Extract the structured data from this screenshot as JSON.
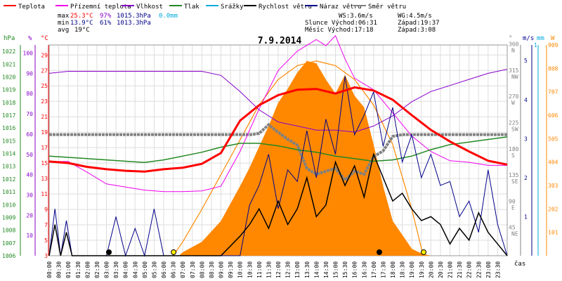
{
  "chart_data": {
    "type": "line",
    "title": "7.9.2014",
    "xlabel": "čas",
    "x_ticks": [
      "00:00",
      "00:30",
      "01:00",
      "01:30",
      "02:00",
      "02:30",
      "03:00",
      "03:30",
      "04:00",
      "04:30",
      "05:00",
      "05:30",
      "06:00",
      "06:30",
      "07:00",
      "07:30",
      "08:00",
      "08:30",
      "09:00",
      "09:30",
      "10:00",
      "10:30",
      "11:00",
      "11:30",
      "12:00",
      "12:30",
      "13:00",
      "13:30",
      "14:00",
      "14:30",
      "15:00",
      "15:30",
      "16:00",
      "16:30",
      "17:00",
      "17:30",
      "18:00",
      "18:30",
      "19:00",
      "19:30",
      "20:00",
      "20:30",
      "21:00",
      "21:30",
      "22:00",
      "22:30",
      "23:00",
      "23:30"
    ],
    "legend": [
      {
        "name": "Teplota",
        "color": "#ff0000"
      },
      {
        "name": "Přízemní teplota",
        "color": "#ee00ee"
      },
      {
        "name": "Vlhkost",
        "color": "#8800cc"
      },
      {
        "name": "Tlak",
        "color": "#228822"
      },
      {
        "name": "Srážky",
        "color": "#00aadd"
      },
      {
        "name": "Rychlost větru",
        "color": "#000000"
      },
      {
        "name": "Náraz větru",
        "color": "#000088"
      },
      {
        "name": "Směr větru",
        "color": "#808080"
      }
    ],
    "stats": {
      "max": {
        "label": "max",
        "temp": "25.3°C",
        "hum": "97%",
        "press": "1015.3hPa",
        "rain": "0.0mm"
      },
      "min": {
        "label": "min",
        "temp": "13.9°C",
        "hum": "61%",
        "press": "1013.3hPa"
      },
      "avg": {
        "label": "avg",
        "temp": "19°C"
      }
    },
    "info": {
      "ws": "WS:3.6m/s",
      "wg": "WG:4.5m/s",
      "sun_rise": "Slunce Východ:06:31",
      "sun_set": "Západ:19:37",
      "moon_rise": "Měsíc  Východ:17:18",
      "moon_set": "Západ:3:08"
    },
    "axes": {
      "pressure": {
        "label": "hPa",
        "ticks": [
          "1022",
          "1021",
          "1020",
          "1019",
          "1018",
          "1017",
          "1016",
          "1015",
          "1014",
          "1013",
          "1012",
          "1011",
          "1010",
          "1009",
          "1008",
          "1007",
          "1006"
        ],
        "ylim": [
          1006,
          1022.5
        ]
      },
      "humidity": {
        "label": "%",
        "ticks": [
          "100",
          "90",
          "80",
          "70",
          "60",
          "50",
          "40",
          "30",
          "20",
          "10"
        ],
        "ylim": [
          0,
          104
        ]
      },
      "temperature": {
        "label": "°C",
        "ticks": [
          "29",
          "27",
          "25",
          "23",
          "21",
          "19",
          "17",
          "15",
          "13",
          "11",
          "9",
          "7",
          "5",
          "3"
        ],
        "ylim": [
          3,
          30.3
        ]
      },
      "direction": {
        "label": "°",
        "ticks": [
          "360",
          "315",
          "270",
          "225",
          "180",
          "135",
          "90",
          "45"
        ],
        "letters": [
          "N",
          "NW",
          "W",
          "SW",
          "S",
          "SE",
          "E",
          "NE"
        ],
        "ylim": [
          0,
          362
        ]
      },
      "wind": {
        "label": "m/s",
        "ticks": [
          "5",
          "4",
          "3",
          "2",
          "1"
        ],
        "ylim": [
          0,
          5.4
        ]
      },
      "rain": {
        "label": "mm",
        "ticks": [
          "1"
        ],
        "ylim": [
          0,
          1
        ]
      },
      "solar": {
        "label": "W",
        "ticks": [
          "909",
          "808",
          "707",
          "606",
          "505",
          "404",
          "303",
          "202",
          "101"
        ],
        "ylim": [
          0,
          909
        ]
      }
    },
    "series": [
      {
        "name": "Teplota",
        "unit": "°C",
        "x": [
          0,
          1,
          2,
          3,
          4,
          5,
          6,
          7,
          8,
          9,
          10,
          11,
          12,
          13,
          14,
          15,
          16,
          17,
          18,
          19,
          20,
          21,
          22,
          23,
          24
        ],
        "values": [
          15.2,
          15.0,
          14.5,
          14.2,
          14.0,
          13.9,
          14.2,
          14.4,
          14.9,
          16.3,
          20.5,
          22.5,
          23.8,
          24.5,
          24.6,
          24.0,
          24.8,
          24.4,
          23.2,
          21.2,
          19.3,
          17.8,
          16.5,
          15.3,
          14.8
        ]
      },
      {
        "name": "Přízemní teplota",
        "unit": "°C",
        "x": [
          0,
          1,
          2,
          3,
          4,
          5,
          6,
          7,
          8,
          9,
          10,
          11,
          12,
          13,
          14,
          14.5,
          15,
          15.5,
          16,
          17,
          18,
          19,
          20,
          21,
          22,
          23,
          24
        ],
        "values": [
          15.2,
          15.2,
          13.8,
          12.3,
          11.9,
          11.5,
          11.3,
          11.3,
          11.4,
          12.0,
          16.5,
          22.0,
          27.0,
          29.5,
          31.0,
          30.2,
          31.5,
          28.5,
          26.0,
          24.5,
          21.5,
          18.5,
          16.5,
          15.3,
          15.1,
          14.7,
          14.7
        ]
      },
      {
        "name": "Vlhkost",
        "unit": "%",
        "x": [
          0,
          1,
          2,
          3,
          4,
          5,
          6,
          7,
          8,
          9,
          10,
          11,
          12,
          13,
          14,
          15,
          16,
          17,
          18,
          19,
          20,
          21,
          22,
          23,
          24
        ],
        "values": [
          90,
          91,
          91,
          91,
          91,
          91,
          91,
          91,
          91,
          89,
          81,
          72,
          66,
          64,
          62,
          62,
          61,
          64,
          69,
          76,
          81,
          84,
          87,
          90,
          92
        ]
      },
      {
        "name": "Tlak",
        "unit": "hPa",
        "x": [
          0,
          1,
          2,
          3,
          4,
          5,
          6,
          7,
          8,
          9,
          10,
          11,
          12,
          13,
          14,
          15,
          16,
          17,
          18,
          19,
          20,
          21,
          22,
          23,
          24
        ],
        "values": [
          1013.8,
          1013.7,
          1013.6,
          1013.5,
          1013.4,
          1013.3,
          1013.5,
          1013.8,
          1014.1,
          1014.5,
          1014.8,
          1014.8,
          1014.6,
          1014.3,
          1014.1,
          1013.8,
          1013.6,
          1013.4,
          1013.5,
          1013.8,
          1014.3,
          1014.7,
          1014.9,
          1015.1,
          1015.3
        ]
      },
      {
        "name": "Směr větru",
        "unit": "°",
        "x": [
          0,
          0.5,
          6,
          9.5,
          10.6,
          11,
          11.5,
          12,
          12.5,
          13,
          13.5,
          14,
          14.5,
          15,
          15.5,
          16,
          16.5,
          17,
          17.5,
          18,
          18.5,
          19,
          24
        ],
        "values": [
          208,
          208,
          208,
          208,
          208,
          210,
          225,
          212,
          200,
          190,
          150,
          140,
          145,
          150,
          130,
          145,
          140,
          170,
          180,
          205,
          208,
          208,
          208
        ]
      },
      {
        "name": "Rychlost větru",
        "unit": "m/s",
        "x": [
          0,
          0.3,
          0.6,
          0.9,
          1.2,
          2,
          3,
          4,
          5,
          6,
          7,
          8,
          9,
          10,
          10.5,
          11,
          11.5,
          12,
          12.5,
          13,
          13.5,
          14,
          14.5,
          15,
          15.5,
          16,
          16.5,
          17,
          17.5,
          18,
          18.5,
          19,
          19.5,
          20,
          20.5,
          21,
          21.5,
          22,
          22.5,
          23,
          23.5,
          24
        ],
        "values": [
          0,
          0.8,
          0,
          0.6,
          0,
          0,
          0,
          0,
          0,
          0,
          0,
          0,
          0,
          0.5,
          0.8,
          1.2,
          0.7,
          1.4,
          0.8,
          1.2,
          2.0,
          1.0,
          1.3,
          2.4,
          1.8,
          2.3,
          1.5,
          2.6,
          2.0,
          1.4,
          1.6,
          1.2,
          0.9,
          1.0,
          0.8,
          0.3,
          0.7,
          0.4,
          1.1,
          0.6,
          0.3,
          0
        ]
      },
      {
        "name": "Náraz větru",
        "unit": "m/s",
        "x": [
          0,
          0.3,
          0.6,
          0.9,
          1.2,
          2,
          3,
          3.5,
          4,
          4.5,
          5,
          5.5,
          6,
          7,
          8,
          9,
          10,
          10.5,
          11,
          11.5,
          12,
          12.5,
          13,
          13.5,
          14,
          14.5,
          15,
          15.5,
          16,
          16.5,
          17,
          17.5,
          18,
          18.5,
          19,
          19.5,
          20,
          20.5,
          21,
          21.5,
          22,
          22.5,
          23,
          23.5,
          24
        ],
        "values": [
          0,
          1.2,
          0,
          0.9,
          0,
          0,
          0,
          1.0,
          0,
          0.7,
          0,
          1.2,
          0,
          0,
          0,
          0,
          0,
          1.3,
          1.8,
          2.6,
          1.2,
          2.2,
          1.9,
          3.2,
          2.0,
          3.5,
          2.6,
          4.6,
          3.1,
          3.6,
          4.2,
          2.8,
          3.8,
          2.4,
          3.1,
          2.0,
          2.6,
          1.8,
          1.9,
          1.0,
          1.4,
          0.6,
          2.2,
          0.8,
          0
        ]
      },
      {
        "name": "Solar max",
        "unit": "W",
        "x": [
          6.5,
          7,
          8,
          9,
          10,
          11,
          12,
          13,
          14,
          15,
          16,
          17,
          18,
          19,
          19.6
        ],
        "values": [
          0,
          60,
          200,
          350,
          500,
          650,
          760,
          820,
          840,
          820,
          760,
          650,
          480,
          200,
          0
        ]
      },
      {
        "name": "Solar",
        "unit": "W",
        "x": [
          6.8,
          7,
          8,
          9,
          10,
          10.5,
          11,
          11.5,
          12,
          12.5,
          13,
          13.5,
          14,
          14.5,
          15,
          15.5,
          16,
          16.5,
          17,
          17.5,
          18,
          18.5,
          19,
          19.5,
          20
        ],
        "values": [
          0,
          15,
          60,
          150,
          300,
          380,
          470,
          560,
          660,
          720,
          790,
          840,
          830,
          760,
          700,
          780,
          690,
          640,
          480,
          300,
          150,
          90,
          30,
          10,
          0
        ]
      }
    ],
    "markers": [
      {
        "type": "moon",
        "time": 3.13,
        "label": ""
      },
      {
        "type": "sun",
        "time": 6.52,
        "label": ""
      },
      {
        "type": "moon",
        "time": 17.3,
        "label": ""
      },
      {
        "type": "sun",
        "time": 19.62,
        "label": ""
      }
    ],
    "colors": {
      "temp": "#ff0000",
      "ground": "#ee00ee",
      "humidity": "#8800cc",
      "pressure": "#228822",
      "wind": "#000000",
      "gust": "#000088",
      "direction": "#808080",
      "solar": "#ff8800",
      "solar_max": "#ff8800",
      "rain": "#00aadd",
      "grid": "#dddddd"
    }
  }
}
